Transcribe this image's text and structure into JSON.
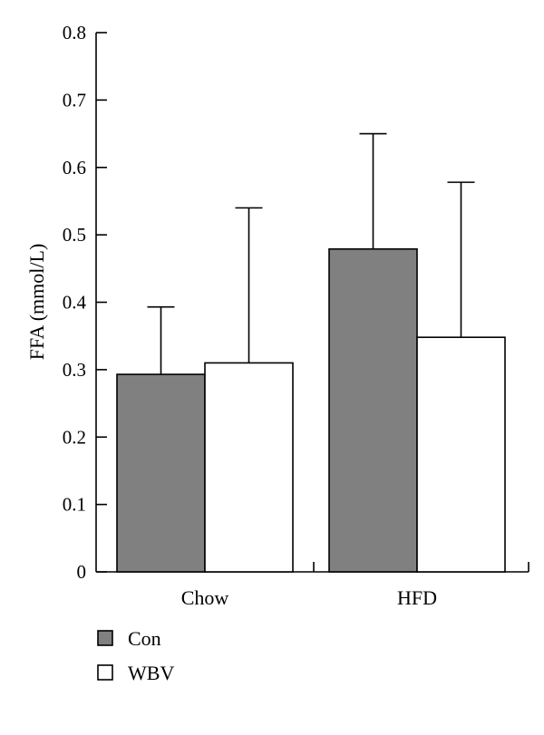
{
  "chart_data": {
    "type": "bar",
    "ylabel": "FFA (mmol/L)",
    "xlabel": "",
    "categories": [
      "Chow",
      "HFD"
    ],
    "series": [
      {
        "name": "Con",
        "values": [
          0.293,
          0.479
        ],
        "error": [
          0.1,
          0.171
        ]
      },
      {
        "name": "WBV",
        "values": [
          0.31,
          0.348
        ],
        "error": [
          0.23,
          0.23
        ]
      }
    ],
    "ylim": [
      0,
      0.8
    ],
    "yticks": [
      "0",
      "0.1",
      "0.2",
      "0.3",
      "0.4",
      "0.5",
      "0.6",
      "0.7",
      "0.8"
    ],
    "grid": false,
    "legend_position": "bottom-left",
    "colors": {
      "Con": "#808080",
      "WBV": "#ffffff",
      "stroke": "#000000"
    }
  }
}
